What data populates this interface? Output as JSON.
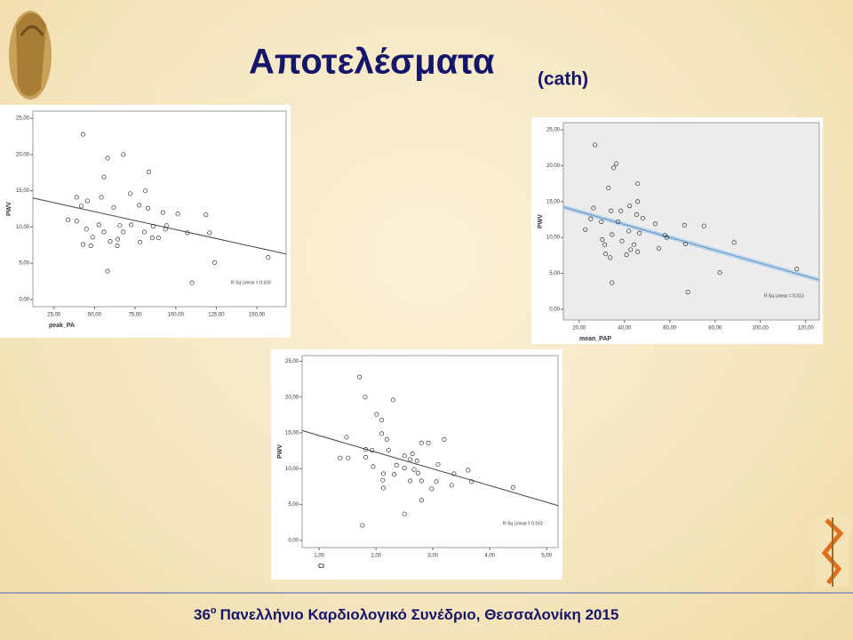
{
  "slide": {
    "title": "Αποτελέσματα",
    "subtitle": "(cath)",
    "footer": {
      "number": "36",
      "sup": "o",
      "text": "Πανελλήνιο Καρδιολογικό Συνέδριο, Θεσσαλονίκη 2015"
    }
  },
  "chart_data": [
    {
      "type": "scatter",
      "x_label": "peak_PA",
      "y_label": "PWV",
      "annotation": "R Sq Linear = 0.103",
      "color": "#333333",
      "fit_color": "#444444",
      "background": "#ffffff",
      "x": [
        42.9,
        58,
        67.7,
        83.4,
        55.8,
        81.3,
        72,
        39,
        54.2,
        45.6,
        41.8,
        61.8,
        77.5,
        82.9,
        92.1,
        101.3,
        118.6,
        33.7,
        39,
        52.6,
        65.6,
        72.6,
        86.1,
        94.3,
        93.7,
        45,
        55.8,
        67.7,
        80.7,
        107.2,
        120.8,
        48.8,
        64.3,
        85.6,
        89.4,
        42.9,
        59.6,
        78,
        47.7,
        64,
        124,
        58,
        157,
        110
      ],
      "values": [
        22.8,
        19.5,
        20,
        17.6,
        16.9,
        15,
        14.6,
        14.1,
        14.1,
        13.6,
        12.9,
        12.7,
        13,
        12.6,
        12,
        11.8,
        11.7,
        11,
        10.8,
        10.3,
        10.2,
        10.3,
        10.1,
        10.2,
        9.7,
        9.7,
        9.3,
        9.3,
        9.3,
        9.2,
        9.2,
        8.6,
        8.3,
        8.5,
        8.5,
        7.6,
        8,
        7.9,
        7.4,
        7.4,
        5.1,
        3.9,
        5.8,
        2.3
      ],
      "xlim": [
        12,
        168
      ],
      "ylim": [
        -1,
        26
      ],
      "xticks": [
        {
          "value": 25,
          "label": "25,00"
        },
        {
          "value": 50,
          "label": "50,00"
        },
        {
          "value": 75,
          "label": "75,00"
        },
        {
          "value": 100,
          "label": "100,00"
        },
        {
          "value": 125,
          "label": "125,00"
        },
        {
          "value": 150,
          "label": "150,00"
        }
      ],
      "yticks": [
        {
          "value": 0,
          "label": "0,00"
        },
        {
          "value": 5,
          "label": "5,00"
        },
        {
          "value": 10,
          "label": "10,00"
        },
        {
          "value": 15,
          "label": "15,00"
        },
        {
          "value": 20,
          "label": "20,00"
        },
        {
          "value": 25,
          "label": "25,00"
        }
      ]
    },
    {
      "type": "scatter",
      "x_label": "mean_PAP",
      "y_label": "PWV",
      "annotation": "R Sq Linear = 0.313",
      "color": "#333333",
      "fit_color": "#5b93c9",
      "background": "#ececec",
      "x": [
        27,
        36.4,
        35.2,
        32.9,
        45.8,
        26.3,
        42.3,
        45.8,
        34.1,
        38.4,
        45.4,
        48.1,
        25.1,
        29.8,
        37.2,
        53.6,
        66.5,
        75.1,
        22.7,
        41.9,
        46.6,
        57.9,
        58.7,
        34.5,
        30.2,
        31.3,
        38.9,
        44.2,
        88.4,
        66.9,
        42.7,
        31.7,
        40.9,
        45.8,
        55.2,
        33.7,
        82.1,
        116.1,
        34.5,
        68
      ],
      "values": [
        22.9,
        20.3,
        19.7,
        16.9,
        17.5,
        14.1,
        14.4,
        15,
        13.7,
        13.7,
        13.2,
        12.7,
        12.6,
        12.2,
        12.2,
        11.9,
        11.7,
        11.6,
        11.1,
        10.9,
        10.6,
        10.3,
        10,
        10.4,
        9.7,
        9,
        9.5,
        9,
        9.3,
        9.1,
        8.3,
        7.7,
        7.6,
        8,
        8.5,
        7.2,
        5.1,
        5.6,
        3.7,
        2.4
      ],
      "xlim": [
        13,
        126
      ],
      "ylim": [
        -1.5,
        26
      ],
      "xticks": [
        {
          "value": 20,
          "label": "20,00"
        },
        {
          "value": 40,
          "label": "40,00"
        },
        {
          "value": 60,
          "label": "60,00"
        },
        {
          "value": 80,
          "label": "80,00"
        },
        {
          "value": 100,
          "label": "100,00"
        },
        {
          "value": 120,
          "label": "120,00"
        }
      ],
      "yticks": [
        {
          "value": 0,
          "label": "0,00"
        },
        {
          "value": 5,
          "label": "5,00"
        },
        {
          "value": 10,
          "label": "10,00"
        },
        {
          "value": 15,
          "label": "15,00"
        },
        {
          "value": 20,
          "label": "20,00"
        },
        {
          "value": 25,
          "label": "25,00"
        }
      ]
    },
    {
      "type": "scatter",
      "x_label": "CI",
      "y_label": "PWV",
      "annotation": "R Sq Linear = 0.163",
      "color": "#333333",
      "fit_color": "#444444",
      "background": "#ffffff",
      "x": [
        1.71,
        1.81,
        2.3,
        2.01,
        2.1,
        2.1,
        1.48,
        2.19,
        3.2,
        2.8,
        2.92,
        1.82,
        1.93,
        2.22,
        2.64,
        1.37,
        1.51,
        1.82,
        2.5,
        2.6,
        2.72,
        3.09,
        2.36,
        1.95,
        2.5,
        2.67,
        3.62,
        2.74,
        2.13,
        2.32,
        3.37,
        2.6,
        2.8,
        3.06,
        3.68,
        2.12,
        3.33,
        2.13,
        2.98,
        4.41,
        2.8,
        2.5,
        1.76
      ],
      "values": [
        22.8,
        20,
        19.6,
        17.6,
        16.8,
        14.9,
        14.4,
        14.1,
        14.1,
        13.6,
        13.6,
        12.7,
        12.6,
        12.6,
        12.1,
        11.5,
        11.5,
        11.6,
        11.8,
        11.3,
        11.1,
        10.6,
        10.5,
        10.3,
        10.1,
        9.9,
        9.8,
        9.4,
        9.3,
        9.2,
        9.3,
        8.3,
        8.3,
        8.2,
        8.2,
        8.4,
        7.7,
        7.3,
        7.2,
        7.4,
        5.6,
        3.7,
        2.1
      ],
      "xlim": [
        0.7,
        5.2
      ],
      "ylim": [
        -1,
        25.8
      ],
      "xticks": [
        {
          "value": 1,
          "label": "1,00"
        },
        {
          "value": 2,
          "label": "2,00"
        },
        {
          "value": 3,
          "label": "3,00"
        },
        {
          "value": 4,
          "label": "4,00"
        },
        {
          "value": 5,
          "label": "5,00"
        }
      ],
      "yticks": [
        {
          "value": 0,
          "label": "0,00"
        },
        {
          "value": 5,
          "label": "5,00"
        },
        {
          "value": 10,
          "label": "10,00"
        },
        {
          "value": 15,
          "label": "15,00"
        },
        {
          "value": 20,
          "label": "20,00"
        },
        {
          "value": 25,
          "label": "25,00"
        }
      ]
    }
  ]
}
